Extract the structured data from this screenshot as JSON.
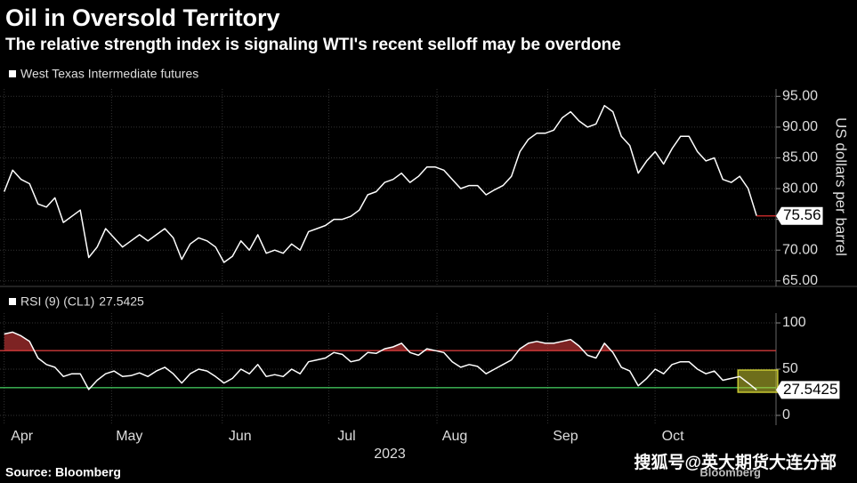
{
  "chart_data": {
    "type": "line",
    "title": "Oil in Oversold Territory",
    "subtitle": "The relative strength index is signaling WTI's recent selloff may be overdone",
    "source": "Source: Bloomberg",
    "logo": "Bloomberg",
    "watermark": "搜狐号@英大期货大连分部",
    "x_label": "2023",
    "xlim": [
      -0.5,
      91.3
    ],
    "xticks": [
      {
        "value": 2.1,
        "label": "Apr"
      },
      {
        "value": 14.8,
        "label": "May"
      },
      {
        "value": 27.9,
        "label": "Jun"
      },
      {
        "value": 40.5,
        "label": "Jul"
      },
      {
        "value": 53.3,
        "label": "Aug"
      },
      {
        "value": 66.4,
        "label": "Sep"
      },
      {
        "value": 79.1,
        "label": "Oct"
      }
    ],
    "grid": true,
    "panels": [
      {
        "y_label": "US dollars per barrel",
        "ylim": [
          64.1,
          96.2
        ],
        "yticks": [
          {
            "value": 65,
            "label": "65.00"
          },
          {
            "value": 70,
            "label": "70.00"
          },
          {
            "value": 75,
            "label": "75.00"
          },
          {
            "value": 80,
            "label": "80.00"
          },
          {
            "value": 85,
            "label": "85.00"
          },
          {
            "value": 90,
            "label": "90.00"
          },
          {
            "value": 95,
            "label": "95.00"
          }
        ],
        "series": [
          {
            "name": "West Texas Intermediate futures",
            "color": "#ffffff",
            "values": [
              79.5,
              83.0,
              81.5,
              80.8,
              77.5,
              77.0,
              78.5,
              74.5,
              75.5,
              76.5,
              68.8,
              70.5,
              73.5,
              72.0,
              70.5,
              71.5,
              72.5,
              71.5,
              72.5,
              73.5,
              72.0,
              68.5,
              71.0,
              72.0,
              71.5,
              70.5,
              68.0,
              69.0,
              71.5,
              70.0,
              72.5,
              69.5,
              70.0,
              69.5,
              71.0,
              70.0,
              73.0,
              73.5,
              74.0,
              75.0,
              75.0,
              75.5,
              76.5,
              79.0,
              79.5,
              81.0,
              81.5,
              82.5,
              81.0,
              82.0,
              83.5,
              83.5,
              83.0,
              81.5,
              80.0,
              80.5,
              80.5,
              79.0,
              79.8,
              80.5,
              82.0,
              86.0,
              88.0,
              89.0,
              89.0,
              89.5,
              91.5,
              92.5,
              91.0,
              90.0,
              90.5,
              93.5,
              92.5,
              88.5,
              87.0,
              82.5,
              84.5,
              86.0,
              84.0,
              86.5,
              88.5,
              88.5,
              86.0,
              84.5,
              85.0,
              81.5,
              81.0,
              82.0,
              80.0,
              75.56
            ]
          }
        ],
        "last_value_color": "#e03030"
      },
      {
        "ylim": [
          -10.6,
          110.6
        ],
        "yticks": [
          0,
          50,
          100
        ],
        "reference_lines": [
          {
            "value": 70,
            "color": "#d03a3a"
          },
          {
            "value": 30,
            "color": "#3fbf5a"
          }
        ],
        "highlight": {
          "x": [
            86.8,
            91.5
          ],
          "y": [
            25,
            49
          ],
          "color": "#c8c832"
        },
        "series": [
          {
            "name": "RSI (9) (CL1)",
            "color": "#ffffff",
            "values": [
              88,
              90,
              86,
              80,
              62,
              55,
              52,
              42,
              45,
              45,
              28,
              38,
              45,
              48,
              42,
              43,
              46,
              42,
              48,
              52,
              45,
              35,
              45,
              50,
              48,
              42,
              35,
              40,
              50,
              45,
              55,
              42,
              44,
              42,
              50,
              45,
              58,
              60,
              62,
              68,
              66,
              58,
              60,
              68,
              67,
              72,
              74,
              78,
              68,
              65,
              72,
              70,
              68,
              58,
              52,
              55,
              53,
              45,
              50,
              55,
              60,
              72,
              78,
              80,
              78,
              78,
              80,
              82,
              75,
              65,
              62,
              78,
              68,
              52,
              48,
              32,
              40,
              50,
              45,
              55,
              58,
              58,
              50,
              45,
              48,
              38,
              40,
              42,
              35,
              27.5425
            ]
          }
        ]
      }
    ]
  }
}
